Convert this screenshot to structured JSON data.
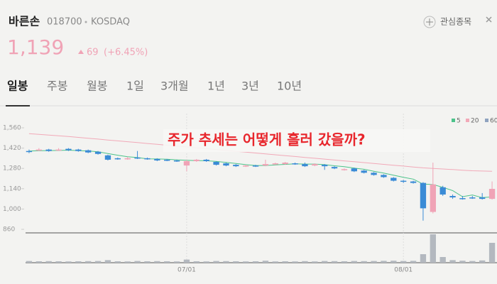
{
  "header": {
    "name": "바른손",
    "code": "018700",
    "market": "KOSDAQ",
    "watch": "관심종목",
    "price": "1,139",
    "change": "69",
    "change_pct": "(+6.45%)"
  },
  "tabs": [
    "일봉",
    "주봉",
    "월봉",
    "1일",
    "3개월",
    "1년",
    "3년",
    "10년"
  ],
  "chart_data": {
    "type": "candlestick",
    "annotation": "주가 추세는 어떻게 흘러 갔을까?",
    "categories": [
      null,
      null,
      null,
      null,
      null,
      null,
      null,
      null,
      null,
      null,
      null,
      null,
      null,
      null,
      null,
      null,
      "07/01",
      null,
      null,
      null,
      null,
      null,
      null,
      null,
      null,
      null,
      null,
      null,
      null,
      null,
      null,
      null,
      null,
      null,
      null,
      null,
      null,
      null,
      "08/01",
      null,
      null,
      null,
      null,
      null,
      null,
      null,
      null,
      null
    ],
    "open": [
      1400,
      1405,
      1410,
      1405,
      1415,
      1410,
      1405,
      1395,
      1370,
      1350,
      1345,
      1355,
      1350,
      1345,
      1340,
      1335,
      1300,
      1330,
      1340,
      1325,
      1315,
      1305,
      1295,
      1300,
      1300,
      1310,
      1310,
      1315,
      1310,
      1300,
      1305,
      1290,
      1270,
      1280,
      1265,
      1250,
      1235,
      1215,
      1195,
      1190,
      1180,
      980,
      1150,
      1090,
      1075,
      1080,
      1080,
      1070
    ],
    "high": [
      1410,
      1420,
      1415,
      1420,
      1420,
      1415,
      1410,
      1400,
      1375,
      1355,
      1360,
      1400,
      1355,
      1350,
      1345,
      1340,
      1340,
      1345,
      1345,
      1330,
      1320,
      1310,
      1305,
      1305,
      1340,
      1320,
      1325,
      1320,
      1320,
      1315,
      1310,
      1295,
      1280,
      1285,
      1270,
      1255,
      1240,
      1220,
      1200,
      1195,
      1185,
      1320,
      1160,
      1100,
      1090,
      1090,
      1110,
      1190
    ],
    "low": [
      1385,
      1400,
      1395,
      1400,
      1400,
      1395,
      1385,
      1375,
      1335,
      1340,
      1340,
      1345,
      1340,
      1330,
      1330,
      1325,
      1260,
      1325,
      1325,
      1300,
      1295,
      1290,
      1290,
      1290,
      1295,
      1305,
      1305,
      1305,
      1290,
      1295,
      1270,
      1275,
      1265,
      1255,
      1245,
      1230,
      1215,
      1190,
      1180,
      1175,
      920,
      970,
      1090,
      1070,
      1065,
      1070,
      1065,
      1065
    ],
    "close": [
      1395,
      1410,
      1400,
      1410,
      1405,
      1400,
      1390,
      1380,
      1340,
      1345,
      1350,
      1350,
      1345,
      1335,
      1335,
      1330,
      1330,
      1340,
      1330,
      1305,
      1300,
      1295,
      1300,
      1295,
      1310,
      1315,
      1320,
      1310,
      1295,
      1310,
      1295,
      1280,
      1275,
      1260,
      1250,
      1235,
      1220,
      1195,
      1190,
      1180,
      1005,
      1170,
      1100,
      1080,
      1070,
      1075,
      1070,
      1139
    ],
    "up_color": "#f0a3b6",
    "down_color": "#3a8bd6",
    "series": [
      {
        "name": "5",
        "color": "#4cc38a",
        "values": [
          1400,
          1402,
          1403,
          1404,
          1406,
          1403,
          1400,
          1395,
          1383,
          1371,
          1361,
          1355,
          1346,
          1345,
          1343,
          1339,
          1336,
          1334,
          1333,
          1328,
          1321,
          1314,
          1306,
          1300,
          1300,
          1304,
          1308,
          1312,
          1310,
          1310,
          1306,
          1298,
          1292,
          1282,
          1274,
          1260,
          1248,
          1233,
          1219,
          1206,
          1172,
          1169,
          1150,
          1127,
          1085,
          1097,
          1079,
          1083
        ]
      },
      {
        "name": "20",
        "color": "#f2a9b8",
        "values": [
          1520,
          1515,
          1510,
          1505,
          1500,
          1494,
          1488,
          1482,
          1476,
          1470,
          1464,
          1458,
          1452,
          1446,
          1440,
          1434,
          1428,
          1422,
          1416,
          1410,
          1404,
          1398,
          1392,
          1386,
          1380,
          1374,
          1368,
          1362,
          1356,
          1350,
          1344,
          1338,
          1332,
          1326,
          1320,
          1314,
          1308,
          1302,
          1296,
          1290,
          1284,
          1280,
          1276,
          1272,
          1268,
          1264,
          1262,
          1260
        ]
      },
      {
        "name": "60",
        "color": "#8fa3c0",
        "values": [
          null,
          null,
          null,
          null,
          null,
          null,
          null,
          null,
          null,
          null,
          null,
          null,
          null,
          null,
          null,
          null,
          null,
          null,
          null,
          null,
          null,
          null,
          null,
          null,
          null,
          null,
          null,
          null,
          null,
          null,
          null,
          null,
          null,
          null,
          null,
          null,
          null,
          null,
          null,
          null,
          null,
          null,
          null,
          null,
          null,
          null,
          null,
          null
        ]
      }
    ],
    "ylim": [
      860,
      1560
    ],
    "yticks": [
      {
        "value": 1560,
        "label": "1,560"
      },
      {
        "value": 1420,
        "label": "1,420"
      },
      {
        "value": 1280,
        "label": "1,280"
      },
      {
        "value": 1140,
        "label": "1,140"
      },
      {
        "value": 1000,
        "label": "1,000"
      },
      860
    ],
    "volume": {
      "color": "#b3b8bf",
      "ylim": [
        0,
        1000
      ],
      "values": [
        60,
        50,
        55,
        50,
        45,
        50,
        55,
        60,
        90,
        50,
        45,
        60,
        50,
        55,
        50,
        45,
        110,
        50,
        45,
        60,
        55,
        50,
        45,
        50,
        70,
        45,
        50,
        45,
        55,
        45,
        60,
        55,
        50,
        60,
        55,
        60,
        65,
        70,
        60,
        65,
        300,
        1000,
        200,
        90,
        70,
        60,
        80,
        700
      ]
    }
  }
}
